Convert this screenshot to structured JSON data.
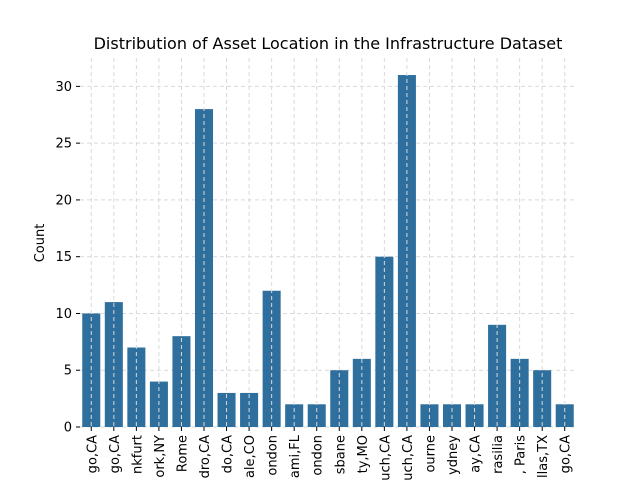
{
  "chart_data": {
    "type": "bar",
    "title": "Distribution of Asset Location in the Infrastructure Dataset",
    "xlabel": "",
    "ylabel": "Count",
    "categories": [
      "go,CA",
      "go,CA",
      "nkfurt",
      "ork,NY",
      "Rome",
      "dro,CA",
      "do,CA",
      "ale,CO",
      "ondon",
      "ami,FL",
      "ondon",
      "sbane",
      "ty,MO",
      "uch,CA",
      "uch,CA",
      "ourne",
      "ydney",
      "ay,CA",
      "rasilia",
      ", Paris",
      "llas,TX",
      "go,CA"
    ],
    "values": [
      10,
      11,
      7,
      4,
      8,
      28,
      3,
      3,
      12,
      2,
      2,
      5,
      6,
      15,
      31,
      2,
      2,
      2,
      9,
      6,
      5,
      2
    ],
    "ylim": [
      0,
      32.5
    ],
    "yticks": [
      0,
      5,
      10,
      15,
      20,
      25,
      30
    ],
    "grid": true,
    "bar_color": "#2e6f9e",
    "grid_color": "#d9d9d9"
  }
}
